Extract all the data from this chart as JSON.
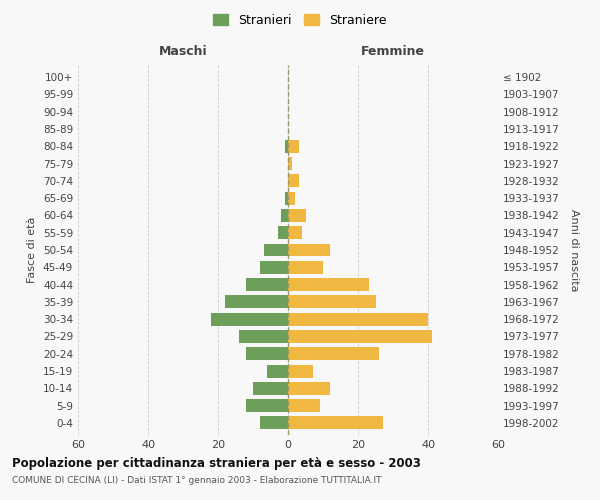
{
  "age_groups": [
    "0-4",
    "5-9",
    "10-14",
    "15-19",
    "20-24",
    "25-29",
    "30-34",
    "35-39",
    "40-44",
    "45-49",
    "50-54",
    "55-59",
    "60-64",
    "65-69",
    "70-74",
    "75-79",
    "80-84",
    "85-89",
    "90-94",
    "95-99",
    "100+"
  ],
  "birth_years": [
    "1998-2002",
    "1993-1997",
    "1988-1992",
    "1983-1987",
    "1978-1982",
    "1973-1977",
    "1968-1972",
    "1963-1967",
    "1958-1962",
    "1953-1957",
    "1948-1952",
    "1943-1947",
    "1938-1942",
    "1933-1937",
    "1928-1932",
    "1923-1927",
    "1918-1922",
    "1913-1917",
    "1908-1912",
    "1903-1907",
    "≤ 1902"
  ],
  "males": [
    8,
    12,
    10,
    6,
    12,
    14,
    22,
    18,
    12,
    8,
    7,
    3,
    2,
    1,
    0,
    0,
    1,
    0,
    0,
    0,
    0
  ],
  "females": [
    27,
    9,
    12,
    7,
    26,
    41,
    40,
    25,
    23,
    10,
    12,
    4,
    5,
    2,
    3,
    1,
    3,
    0,
    0,
    0,
    0
  ],
  "male_color": "#6d9e5a",
  "female_color": "#f0b840",
  "male_label": "Stranieri",
  "female_label": "Straniere",
  "left_label": "Maschi",
  "right_label": "Femmine",
  "ylabel": "Fasce di età",
  "right_ylabel": "Anni di nascita",
  "title": "Popolazione per cittadinanza straniera per età e sesso - 2003",
  "subtitle": "COMUNE DI CECINA (LI) - Dati ISTAT 1° gennaio 2003 - Elaborazione TUTTITALIA.IT",
  "xlim": 60,
  "bg_color": "#f8f8f8",
  "grid_color": "#cccccc",
  "dashed_line_color": "#999966"
}
